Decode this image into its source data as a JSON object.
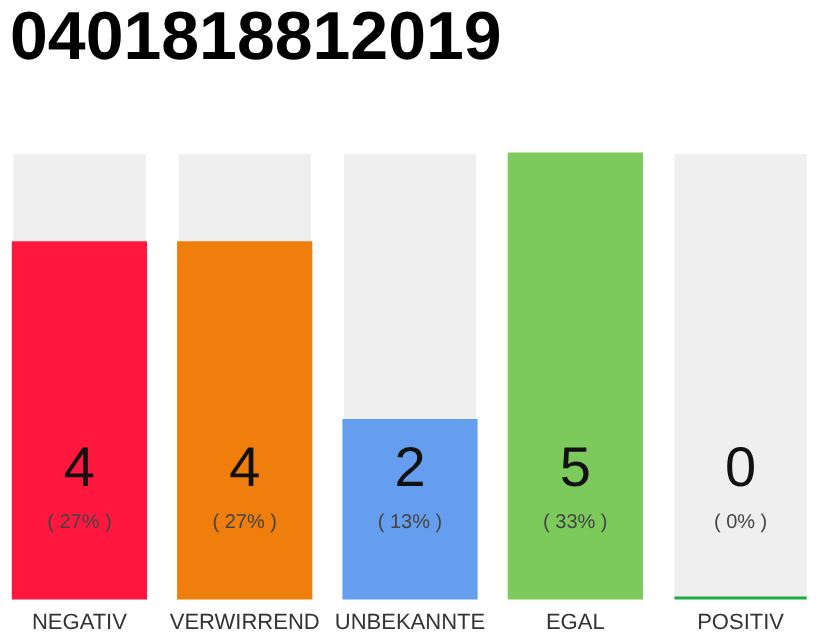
{
  "chart_data": {
    "type": "bar",
    "title": "0401818812019",
    "categories": [
      "NEGATIV",
      "VERWIRREND",
      "UNBEKANNTE",
      "EGAL",
      "POSITIV"
    ],
    "values": [
      4,
      4,
      2,
      5,
      0
    ],
    "colors": [
      "#ff173d",
      "#f07e0c",
      "#659eee",
      "#7dca5c",
      "#22aa44"
    ],
    "ylim": [
      0,
      5
    ],
    "tick_labels": "x",
    "grid": false,
    "data_labels": true,
    "bands": [
      {
        "axis": "y",
        "from": 0,
        "to": 5,
        "color": "#efefef"
      }
    ],
    "annotations": [
      "( 27% )",
      "( 27% )",
      "( 13% )",
      "( 33% )",
      "( 0% )"
    ]
  }
}
